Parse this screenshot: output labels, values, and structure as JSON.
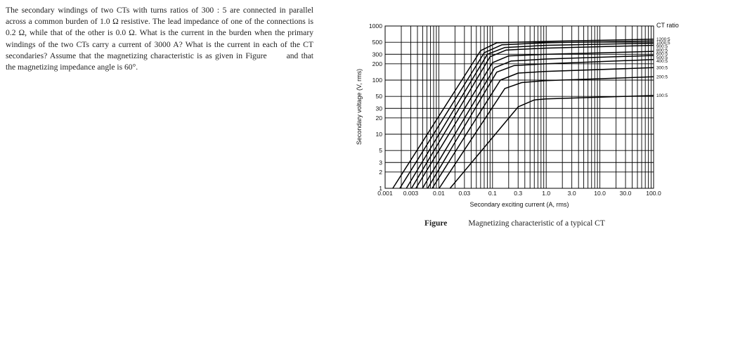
{
  "problem": {
    "part1": "The secondary windings of two CTs with turns ratios of 300 : 5 are connected in parallel across a common burden of 1.0 Ω resistive. The lead impedance of one of the connections is 0.2 Ω, while that of the other is 0.0 Ω. What is the current in the burden when the primary windings of the two CTs carry a current of 3000 A? What is the current in each of the CT secondaries? Assume that the magnetizing characteristic is as given in Figure",
    "part2": "and that the magnetizing impedance angle is 60°."
  },
  "caption": {
    "label": "Figure",
    "text": "Magnetizing characteristic of a typical CT"
  },
  "chart_data": {
    "type": "line",
    "title": "",
    "xlabel": "Secondary exciting current (A, rms)",
    "ylabel": "Secondary voltage (V, rms)",
    "x_scale": "log",
    "y_scale": "log",
    "xlim": [
      0.001,
      100
    ],
    "ylim": [
      1,
      1000
    ],
    "x_ticks": [
      "0.001",
      "0.003",
      "0.01",
      "0.03",
      "0.1",
      "0.3",
      "1.0",
      "3.0",
      "10.0",
      "30.0",
      "100.0"
    ],
    "y_ticks": [
      "1000",
      "500",
      "300",
      "200",
      "100",
      "50",
      "30",
      "20",
      "10",
      "5",
      "3",
      "2",
      "1"
    ],
    "grid": true,
    "legend_title": "CT ratio",
    "legend_placement": "right",
    "series": [
      {
        "name": "1200:5",
        "values": [
          [
            0.001,
            0.6
          ],
          [
            0.06,
            350
          ],
          [
            0.12,
            490
          ],
          [
            1.0,
            520
          ],
          [
            100,
            570
          ]
        ]
      },
      {
        "name": "1000:5",
        "values": [
          [
            0.0015,
            0.7
          ],
          [
            0.07,
            320
          ],
          [
            0.15,
            450
          ],
          [
            1.0,
            490
          ],
          [
            100,
            530
          ]
        ]
      },
      {
        "name": "900:5",
        "values": [
          [
            0.002,
            0.7
          ],
          [
            0.08,
            300
          ],
          [
            0.17,
            400
          ],
          [
            1.0,
            440
          ],
          [
            100,
            480
          ]
        ]
      },
      {
        "name": "800:5",
        "values": [
          [
            0.0025,
            0.7
          ],
          [
            0.09,
            270
          ],
          [
            0.18,
            360
          ],
          [
            1.0,
            390
          ],
          [
            100,
            440
          ]
        ]
      },
      {
        "name": "600:5",
        "values": [
          [
            0.003,
            0.7
          ],
          [
            0.1,
            210
          ],
          [
            0.2,
            280
          ],
          [
            1.0,
            300
          ],
          [
            100,
            340
          ]
        ]
      },
      {
        "name": "500:5",
        "values": [
          [
            0.004,
            0.7
          ],
          [
            0.11,
            170
          ],
          [
            0.22,
            225
          ],
          [
            1.0,
            245
          ],
          [
            100,
            285
          ]
        ]
      },
      {
        "name": "400:5",
        "values": [
          [
            0.005,
            0.7
          ],
          [
            0.12,
            140
          ],
          [
            0.25,
            185
          ],
          [
            1.0,
            200
          ],
          [
            100,
            240
          ]
        ]
      },
      {
        "name": "300:5",
        "values": [
          [
            0.006,
            0.7
          ],
          [
            0.14,
            100
          ],
          [
            0.3,
            135
          ],
          [
            1.0,
            145
          ],
          [
            100,
            170
          ]
        ]
      },
      {
        "name": "200:5",
        "values": [
          [
            0.008,
            0.7
          ],
          [
            0.17,
            70
          ],
          [
            0.35,
            90
          ],
          [
            1.0,
            98
          ],
          [
            100,
            115
          ]
        ]
      },
      {
        "name": "100:5",
        "values": [
          [
            0.012,
            0.7
          ],
          [
            0.3,
            32
          ],
          [
            0.6,
            43
          ],
          [
            1.0,
            45
          ],
          [
            100,
            52
          ]
        ]
      }
    ]
  }
}
